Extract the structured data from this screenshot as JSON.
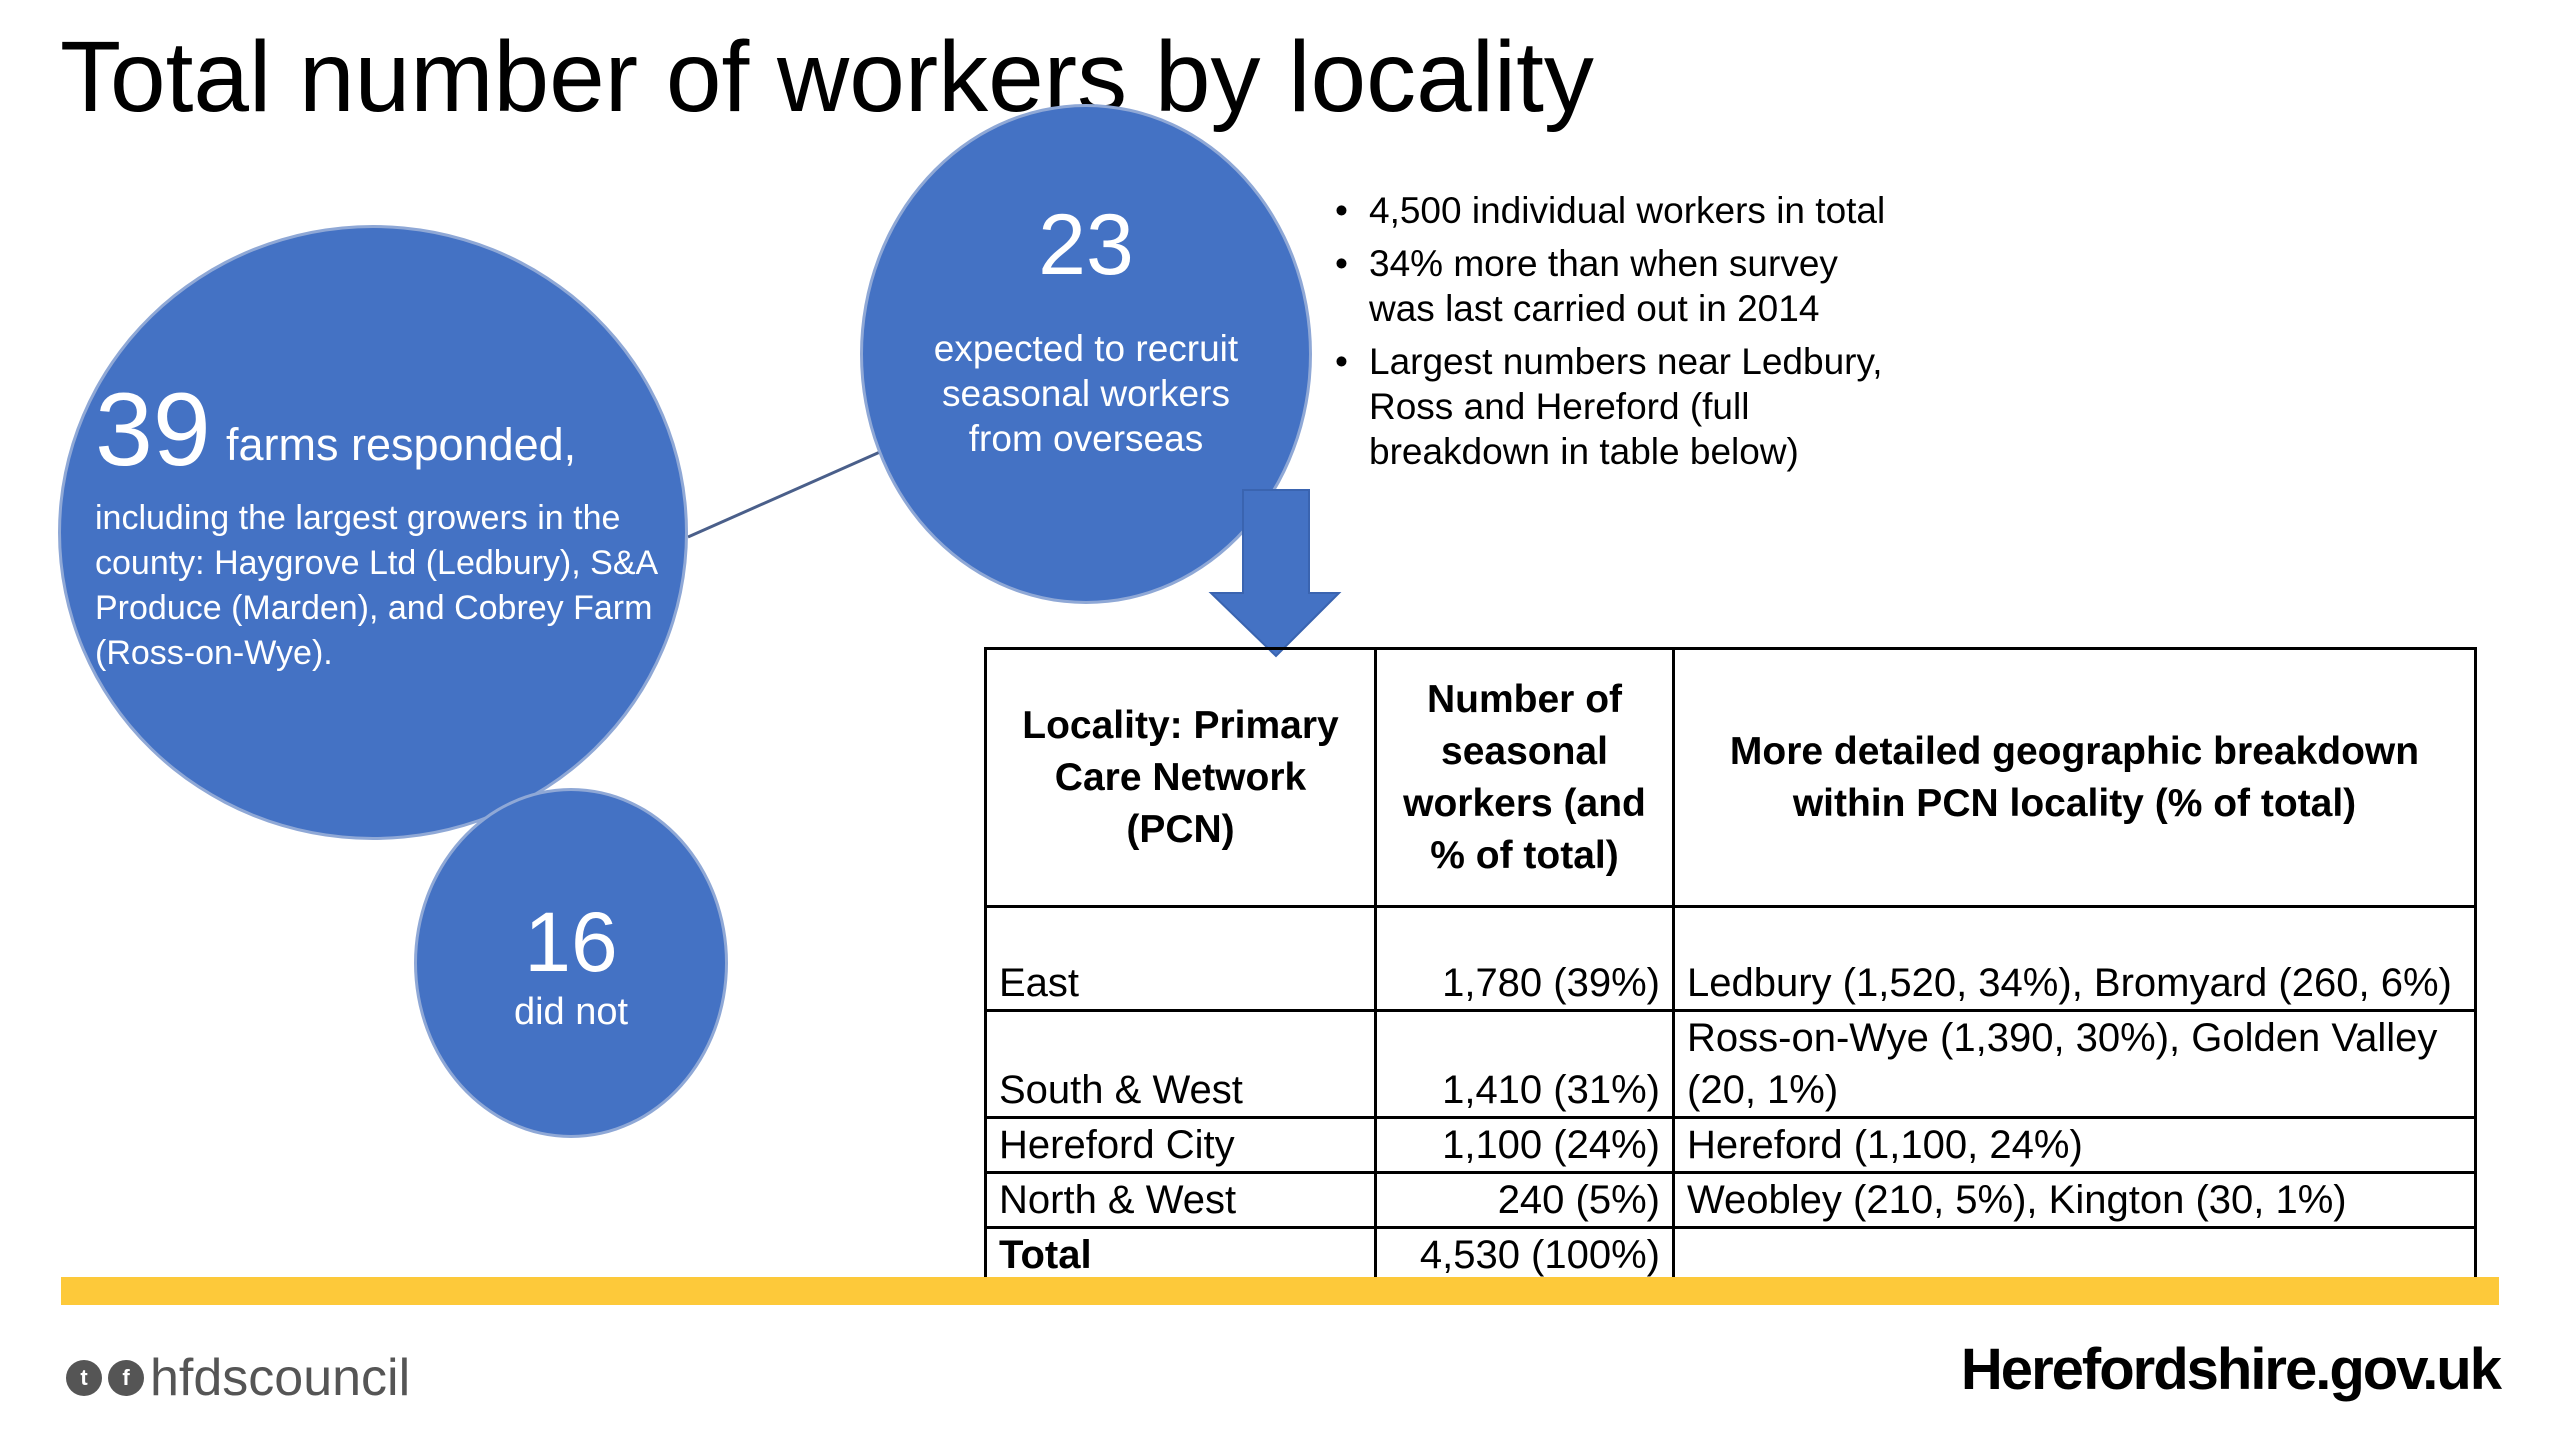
{
  "title": "Total number of workers by locality",
  "colors": {
    "circle": "#4472c4",
    "accent_bar": "#fdc93a"
  },
  "circle_farms": {
    "number": "39",
    "lead": "farms responded,",
    "body": "including the largest growers in the county: Haygrove Ltd (Ledbury), S&A Produce (Marden), and Cobrey Farm (Ross-on-Wye)."
  },
  "circle_overseas": {
    "number": "23",
    "body": "expected to recruit seasonal workers from overseas"
  },
  "circle_didnot": {
    "number": "16",
    "body": "did not"
  },
  "bullets": [
    "4,500 individual workers in total",
    "34% more than when survey was last carried out in 2014",
    "Largest numbers near Ledbury, Ross and Hereford (full breakdown in table below)"
  ],
  "table": {
    "headers": [
      "Locality: Primary Care Network (PCN)",
      "Number of seasonal workers (and % of total)",
      "More detailed geographic breakdown within PCN locality (% of total)"
    ],
    "rows": [
      {
        "locality": "East",
        "workers": "1,780 (39%)",
        "breakdown": "Ledbury (1,520, 34%), Bromyard (260, 6%)"
      },
      {
        "locality": "South & West",
        "workers": "1,410 (31%)",
        "breakdown": "Ross-on-Wye (1,390, 30%), Golden Valley (20, 1%)"
      },
      {
        "locality": "Hereford City",
        "workers": "1,100 (24%)",
        "breakdown": "Hereford (1,100, 24%)"
      },
      {
        "locality": "North & West",
        "workers": "240 (5%)",
        "breakdown": "Weobley (210, 5%), Kington (30, 1%)"
      },
      {
        "locality": "Total",
        "workers": "4,530 (100%)",
        "breakdown": ""
      }
    ]
  },
  "footer": {
    "social_handle": "hfdscouncil",
    "social_icons": [
      "twitter-icon",
      "facebook-icon"
    ],
    "website": "Herefordshire.gov.uk"
  }
}
